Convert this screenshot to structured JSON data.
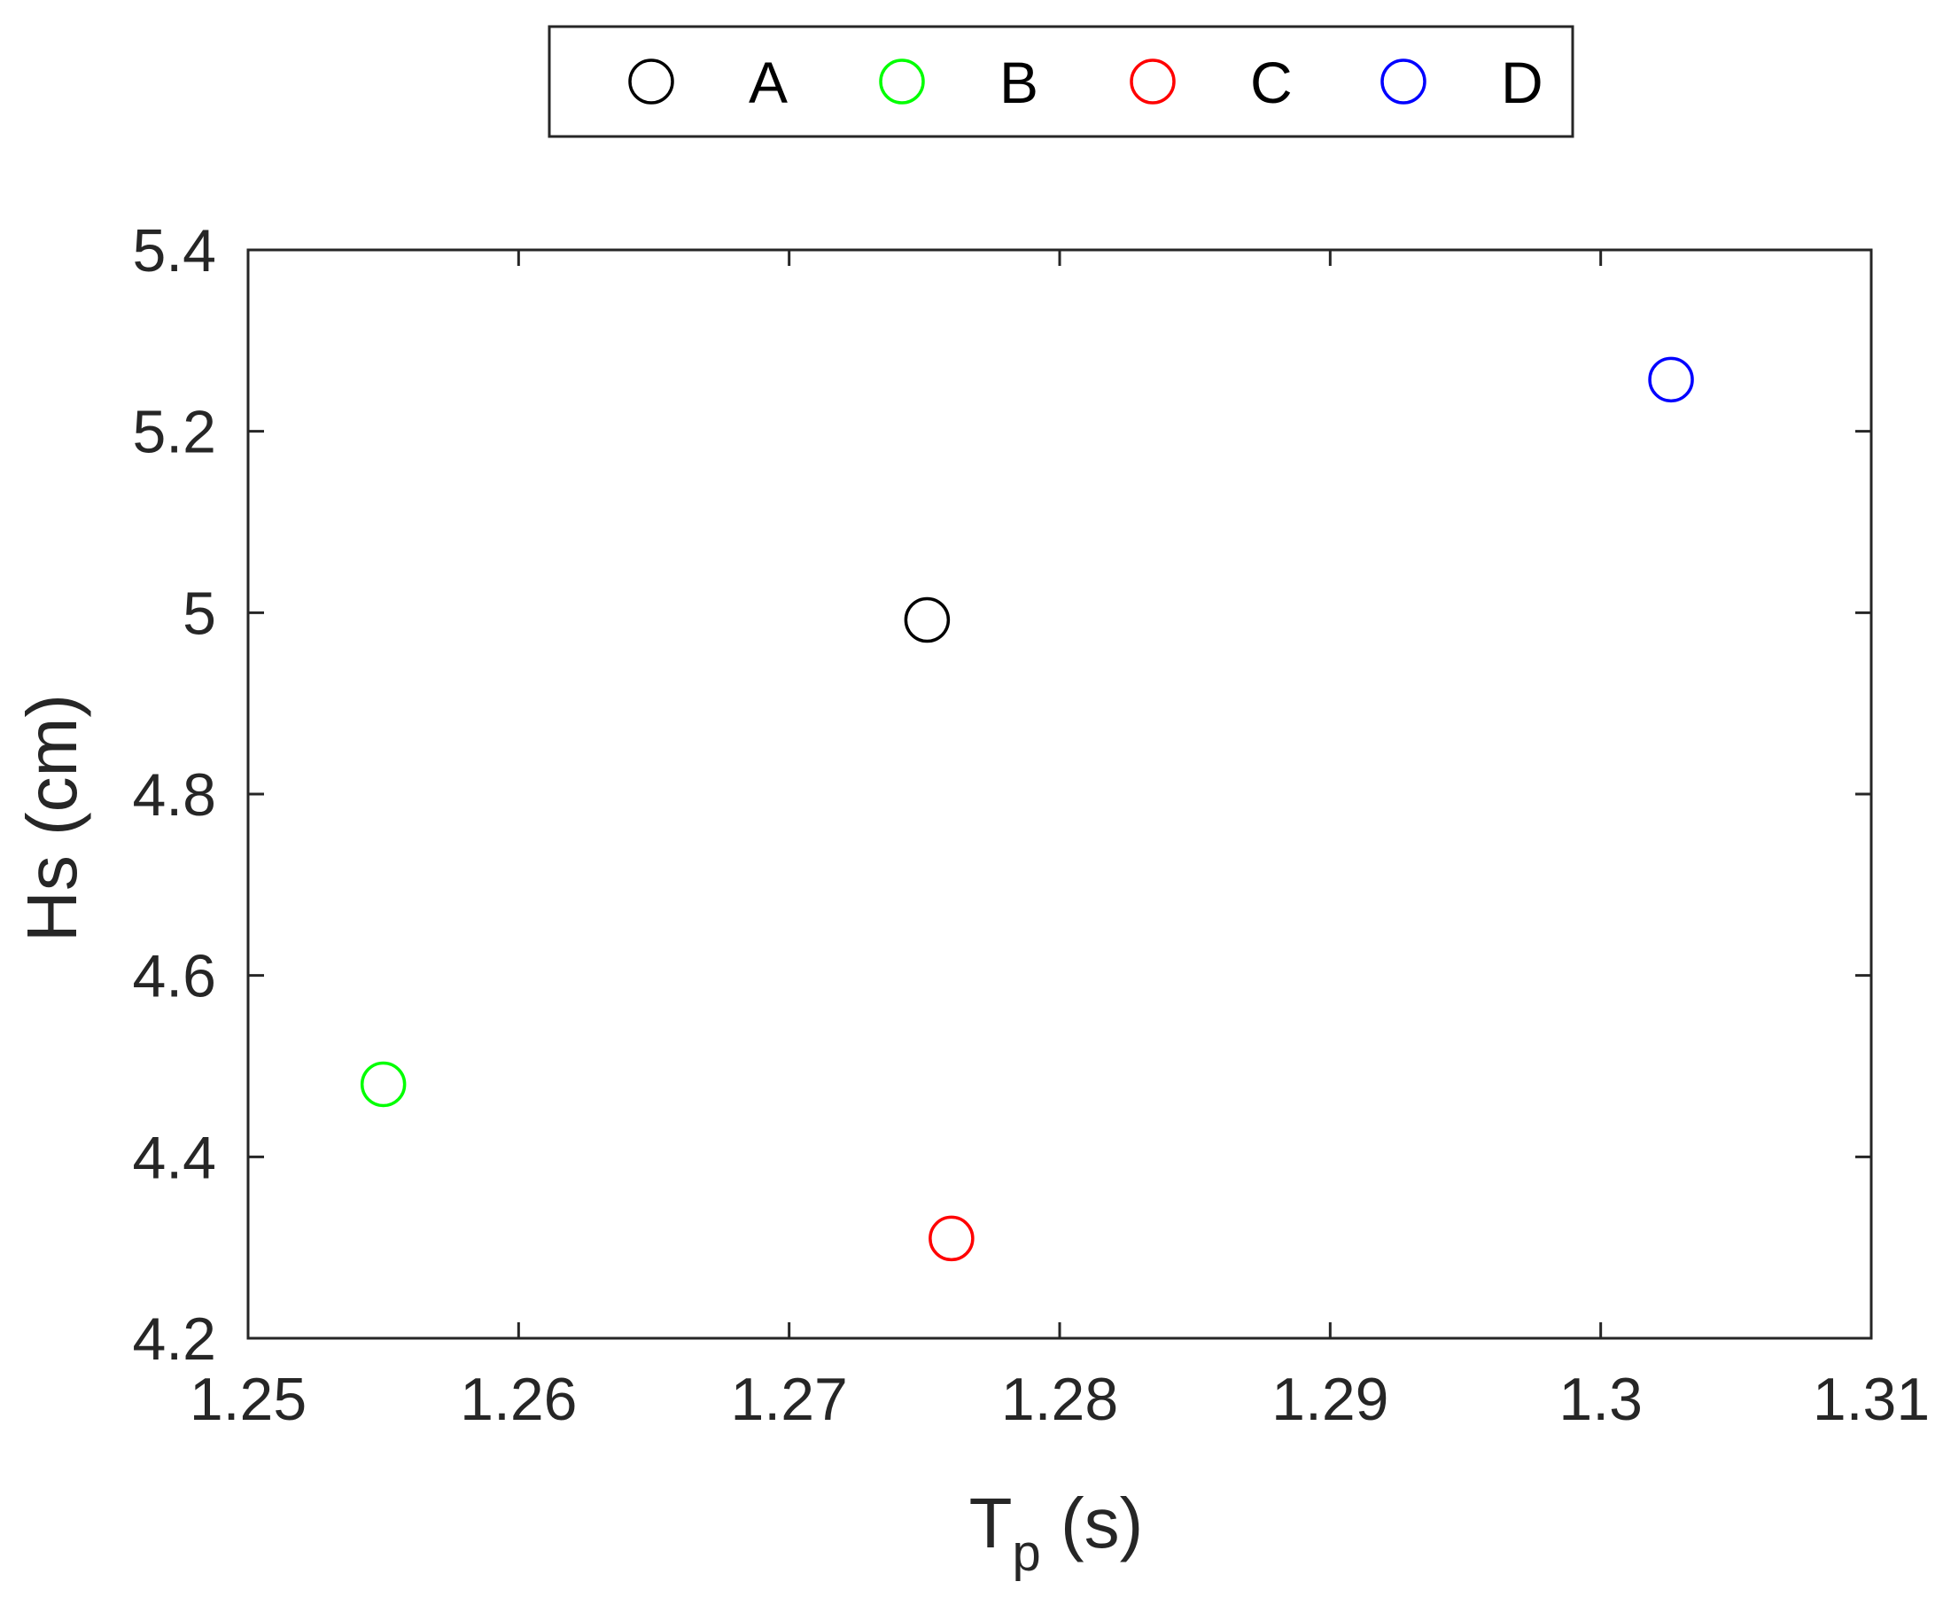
{
  "chart_data": {
    "type": "scatter",
    "title": "",
    "xlabel": {
      "main": "T",
      "subscript": "p",
      "suffix": " (s)"
    },
    "ylabel": "Hs (cm)",
    "xlim": [
      1.25,
      1.31
    ],
    "ylim": [
      4.2,
      5.4
    ],
    "x_ticks": [
      1.25,
      1.26,
      1.27,
      1.28,
      1.29,
      1.3,
      1.31
    ],
    "x_tick_labels": [
      "1.25",
      "1.26",
      "1.27",
      "1.28",
      "1.29",
      "1.3",
      "1.31"
    ],
    "y_ticks": [
      4.2,
      4.4,
      4.6,
      4.8,
      5.0,
      5.2,
      5.4
    ],
    "y_tick_labels": [
      "4.2",
      "4.4",
      "4.6",
      "4.8",
      "5",
      "5.2",
      "5.4"
    ],
    "grid": false,
    "legend_position": "top-center outside, horizontal",
    "marker": "open-circle",
    "series": [
      {
        "name": "A",
        "color": "#000000",
        "x": [
          1.2751
        ],
        "y": [
          4.992
        ]
      },
      {
        "name": "B",
        "color": "#00ff00",
        "x": [
          1.255
        ],
        "y": [
          4.48
        ]
      },
      {
        "name": "C",
        "color": "#ff0000",
        "x": [
          1.276
        ],
        "y": [
          4.31
        ]
      },
      {
        "name": "D",
        "color": "#0000ff",
        "x": [
          1.3026
        ],
        "y": [
          5.257
        ]
      }
    ]
  }
}
